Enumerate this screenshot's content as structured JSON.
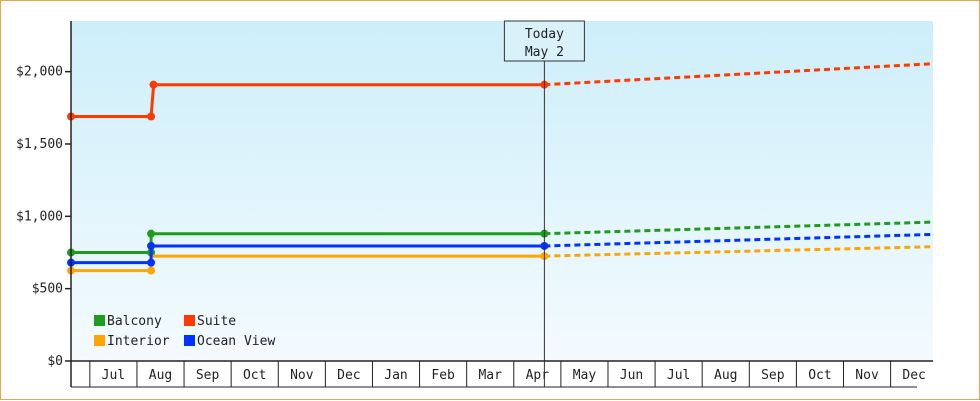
{
  "chart_data": {
    "type": "line",
    "title": "",
    "xlabel": "",
    "ylabel": "",
    "ylim": [
      0,
      2350
    ],
    "y_ticks": [
      0,
      500,
      1000,
      1500,
      2000
    ],
    "y_tick_labels": [
      "$0",
      "$500",
      "$1,000",
      "$1,500",
      "$2,000"
    ],
    "x_tick_labels": [
      "Jul",
      "Aug",
      "Sep",
      "Oct",
      "Nov",
      "Dec",
      "Jan",
      "Feb",
      "Mar",
      "Apr",
      "May",
      "Jun",
      "Jul",
      "Aug",
      "Sep",
      "Oct",
      "Nov",
      "Dec"
    ],
    "x_range_months": [
      0,
      18.3
    ],
    "today": {
      "line1": "Today",
      "line2": "May 2",
      "month": 10.05
    },
    "grid": false,
    "legend_position": "bottom-left",
    "background_gradient": [
      "#cdeef9",
      "#f4fbff"
    ],
    "series": [
      {
        "name": "Balcony",
        "color": "#1f9b1f",
        "actual": [
          [
            0,
            750
          ],
          [
            1.7,
            750
          ],
          [
            1.7,
            880
          ],
          [
            10.05,
            880
          ]
        ],
        "markers": [
          [
            0,
            750
          ],
          [
            1.7,
            750
          ],
          [
            1.7,
            880
          ],
          [
            10.05,
            880
          ]
        ],
        "forecast": [
          [
            10.05,
            880
          ],
          [
            18.3,
            960
          ]
        ]
      },
      {
        "name": "Suite",
        "color": "#ff3a00",
        "actual": [
          [
            0,
            1690
          ],
          [
            1.7,
            1690
          ],
          [
            1.75,
            1890
          ],
          [
            1.75,
            1910
          ],
          [
            10.05,
            1910
          ]
        ],
        "markers": [
          [
            0,
            1690
          ],
          [
            1.7,
            1690
          ],
          [
            1.75,
            1910
          ],
          [
            10.05,
            1910
          ]
        ],
        "forecast": [
          [
            10.05,
            1910
          ],
          [
            18.3,
            2055
          ]
        ]
      },
      {
        "name": "Interior",
        "color": "#ffa500",
        "actual": [
          [
            0,
            625
          ],
          [
            1.7,
            625
          ],
          [
            1.7,
            725
          ],
          [
            10.05,
            725
          ]
        ],
        "markers": [
          [
            0,
            625
          ],
          [
            1.7,
            625
          ],
          [
            10.05,
            725
          ]
        ],
        "forecast": [
          [
            10.05,
            725
          ],
          [
            18.3,
            790
          ]
        ]
      },
      {
        "name": "Ocean View",
        "color": "#0033ff",
        "actual": [
          [
            0,
            680
          ],
          [
            1.7,
            680
          ],
          [
            1.7,
            795
          ],
          [
            10.05,
            795
          ]
        ],
        "markers": [
          [
            0,
            680
          ],
          [
            1.7,
            680
          ],
          [
            1.7,
            795
          ],
          [
            10.05,
            795
          ]
        ],
        "forecast": [
          [
            10.05,
            795
          ],
          [
            18.3,
            875
          ]
        ]
      }
    ]
  }
}
